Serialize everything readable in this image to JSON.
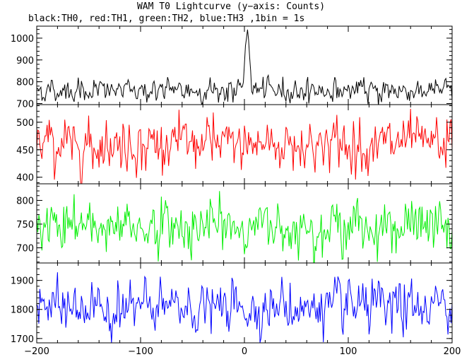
{
  "chart_data": {
    "type": "line",
    "title": "WAM T0 Lightcurve (y−axis: Counts)",
    "subtitle": "black:TH0, red:TH1, green:TH2, blue:TH3 ,1bin = 1s",
    "x": {
      "min": -200,
      "max": 200,
      "step": 1,
      "tick_values": [
        -200,
        -100,
        0,
        100,
        200
      ],
      "tick_labels": [
        "−200",
        "−100",
        "0",
        "100",
        "200"
      ]
    },
    "series": [
      {
        "name": "TH0",
        "color": "#000000",
        "ylim": [
          695,
          1055
        ],
        "tick_values": [
          700,
          800,
          900,
          1000
        ],
        "tick_labels": [
          "700",
          "800",
          "900",
          "1000"
        ],
        "baseline": 760,
        "noise": 26,
        "burst": {
          "center": 3,
          "peak": 1050,
          "width": 2
        }
      },
      {
        "name": "TH1",
        "color": "#ff0000",
        "ylim": [
          388,
          532
        ],
        "tick_values": [
          400,
          450,
          500
        ],
        "tick_labels": [
          "400",
          "450",
          "500"
        ],
        "baseline": 460,
        "noise": 23
      },
      {
        "name": "TH2",
        "color": "#00ee00",
        "ylim": [
          668,
          835
        ],
        "tick_values": [
          700,
          750,
          800
        ],
        "tick_labels": [
          "700",
          "750",
          "800"
        ],
        "baseline": 745,
        "noise": 27
      },
      {
        "name": "TH3",
        "color": "#0000ff",
        "ylim": [
          1685,
          1960
        ],
        "tick_values": [
          1700,
          1800,
          1900
        ],
        "tick_labels": [
          "1700",
          "1800",
          "1900"
        ],
        "baseline": 1805,
        "noise": 42
      }
    ]
  }
}
